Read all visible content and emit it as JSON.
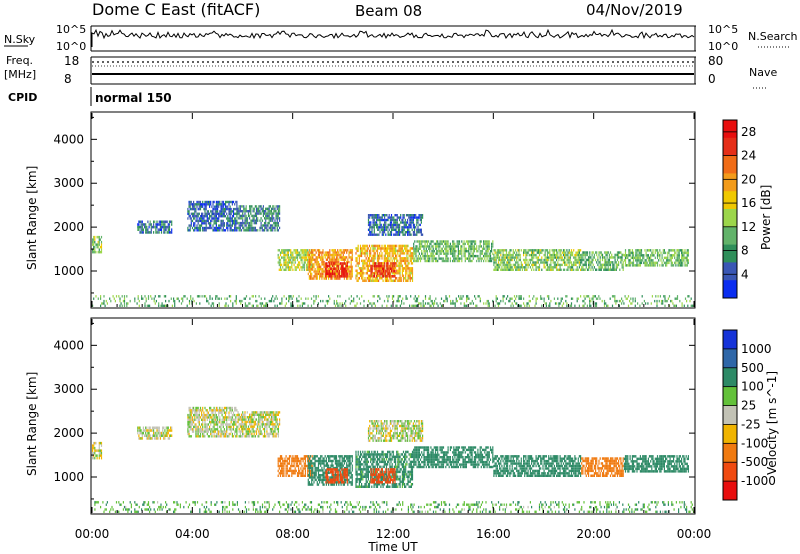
{
  "header": {
    "station": "Dome C East (fitACF)",
    "beam": "Beam 08",
    "date": "04/Nov/2019"
  },
  "top_panels": {
    "nsky_label": "N.Sky",
    "nsky_top": "10^5",
    "nsky_bottom": "10^0",
    "nsearch_label": "N.Search",
    "nsearch_top": "10^5",
    "nsearch_bottom": "10^0",
    "freq_label": "Freq.",
    "freq_unit": "[MHz]",
    "freq_top": "18",
    "freq_bottom": "8",
    "nave_label": "Nave",
    "nave_top": "80",
    "nave_bottom": "0",
    "cpid_label": "CPID",
    "cpid_value": "normal 150"
  },
  "colors": {
    "power": [
      "#0a2df0",
      "#3a57b4",
      "#2f8f5a",
      "#62b36a",
      "#9cd64b",
      "#f0c800",
      "#f39b1a",
      "#f06c17",
      "#e52e18",
      "#e80e0e"
    ],
    "velocity": [
      "#1533d8",
      "#2f67a8",
      "#2d8a66",
      "#63c13a",
      "#c2c2b5",
      "#f0b400",
      "#f07a10",
      "#f04a10",
      "#e80e0e"
    ]
  },
  "chart_data": [
    {
      "type": "heatmap",
      "title": "Power",
      "xlabel": "",
      "ylabel": "Slant Range [km]",
      "x_ticks": [
        "00:00",
        "04:00",
        "08:00",
        "12:00",
        "16:00",
        "20:00",
        "00:00"
      ],
      "y_ticks": [
        1000,
        2000,
        3000,
        4000
      ],
      "ylim": [
        180,
        4600
      ],
      "colorbar_label": "Power [dB]",
      "colorbar_ticks": [
        4,
        8,
        12,
        16,
        20,
        24,
        28
      ],
      "colorbar_range": [
        0,
        30
      ],
      "regions": [
        {
          "t": [
            0.0,
            0.4
          ],
          "r": [
            1400,
            1800
          ],
          "v": 12
        },
        {
          "t": [
            1.8,
            3.2
          ],
          "r": [
            1850,
            2150
          ],
          "v": 6
        },
        {
          "t": [
            3.8,
            5.8
          ],
          "r": [
            1900,
            2600
          ],
          "v": 5
        },
        {
          "t": [
            5.8,
            7.5
          ],
          "r": [
            1900,
            2500
          ],
          "v": 7
        },
        {
          "t": [
            7.4,
            8.8
          ],
          "r": [
            1000,
            1500
          ],
          "v": 14
        },
        {
          "t": [
            8.6,
            10.4
          ],
          "r": [
            800,
            1500
          ],
          "v": 20
        },
        {
          "t": [
            9.3,
            10.2
          ],
          "r": [
            850,
            1200
          ],
          "v": 27
        },
        {
          "t": [
            10.5,
            12.8
          ],
          "r": [
            750,
            1600
          ],
          "v": 18
        },
        {
          "t": [
            11.1,
            12.1
          ],
          "r": [
            850,
            1200
          ],
          "v": 26
        },
        {
          "t": [
            11.0,
            13.2
          ],
          "r": [
            1800,
            2300
          ],
          "v": 5
        },
        {
          "t": [
            12.8,
            16.0
          ],
          "r": [
            1200,
            1700
          ],
          "v": 11
        },
        {
          "t": [
            16.0,
            19.5
          ],
          "r": [
            1000,
            1500
          ],
          "v": 12
        },
        {
          "t": [
            19.5,
            21.2
          ],
          "r": [
            1000,
            1450
          ],
          "v": 10
        },
        {
          "t": [
            21.2,
            23.8
          ],
          "r": [
            1100,
            1500
          ],
          "v": 11
        },
        {
          "t": [
            0.0,
            24.0
          ],
          "r": [
            180,
            450
          ],
          "v": 10
        }
      ]
    },
    {
      "type": "heatmap",
      "title": "Velocity",
      "xlabel": "Time UT",
      "ylabel": "Slant Range [km]",
      "x_ticks": [
        "00:00",
        "04:00",
        "08:00",
        "12:00",
        "16:00",
        "20:00",
        "00:00"
      ],
      "y_ticks": [
        1000,
        2000,
        3000,
        4000
      ],
      "ylim": [
        180,
        4600
      ],
      "colorbar_label": "Velocity [m s^-1]",
      "colorbar_ticks": [
        1000,
        500,
        100,
        25,
        -25,
        -100,
        -500,
        -1000
      ],
      "regions": [
        {
          "t": [
            0.0,
            0.4
          ],
          "r": [
            1400,
            1800
          ],
          "v": 0
        },
        {
          "t": [
            1.8,
            3.2
          ],
          "r": [
            1850,
            2150
          ],
          "v": 0
        },
        {
          "t": [
            3.8,
            5.8
          ],
          "r": [
            1900,
            2600
          ],
          "v": 10
        },
        {
          "t": [
            5.8,
            7.5
          ],
          "r": [
            1900,
            2500
          ],
          "v": 0
        },
        {
          "t": [
            7.4,
            8.8
          ],
          "r": [
            1000,
            1500
          ],
          "v": -200
        },
        {
          "t": [
            8.6,
            10.4
          ],
          "r": [
            800,
            1500
          ],
          "v": 200
        },
        {
          "t": [
            9.3,
            10.2
          ],
          "r": [
            850,
            1200
          ],
          "v": -700
        },
        {
          "t": [
            10.5,
            12.8
          ],
          "r": [
            750,
            1600
          ],
          "v": 150
        },
        {
          "t": [
            11.1,
            12.1
          ],
          "r": [
            850,
            1200
          ],
          "v": -600
        },
        {
          "t": [
            11.0,
            13.2
          ],
          "r": [
            1800,
            2300
          ],
          "v": 10
        },
        {
          "t": [
            12.8,
            16.0
          ],
          "r": [
            1200,
            1700
          ],
          "v": 300
        },
        {
          "t": [
            16.0,
            19.5
          ],
          "r": [
            1000,
            1500
          ],
          "v": 250
        },
        {
          "t": [
            19.5,
            21.2
          ],
          "r": [
            1000,
            1450
          ],
          "v": -200
        },
        {
          "t": [
            21.2,
            23.8
          ],
          "r": [
            1100,
            1500
          ],
          "v": 200
        },
        {
          "t": [
            0.0,
            24.0
          ],
          "r": [
            180,
            450
          ],
          "v": 80
        }
      ]
    }
  ]
}
